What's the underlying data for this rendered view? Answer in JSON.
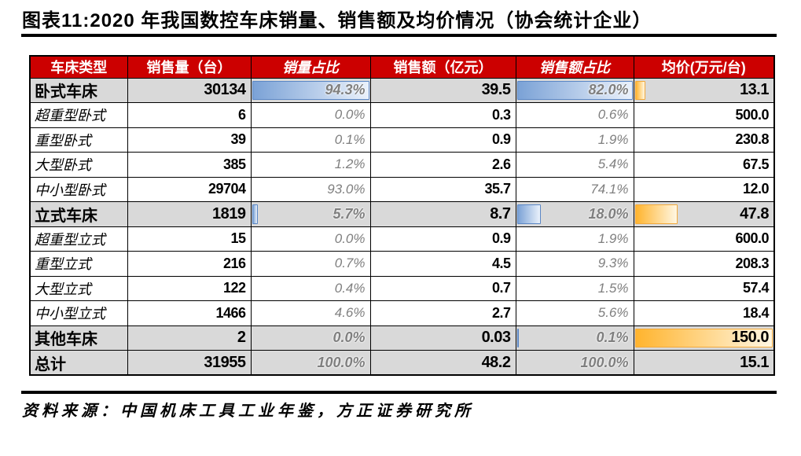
{
  "title": "图表11:2020 年我国数控车床销量、销售额及均价情况（协会统计企业）",
  "source": "资料来源：中国机床工具工业年鉴，方正证券研究所",
  "colors": {
    "header_bg": "#CC0000",
    "header_text": "#FFFFFF",
    "category_bg": "#D9D9D9",
    "grid": "#000000",
    "pct_text": "#7F7F7F",
    "bar_blue_start": "#7BA2D6",
    "bar_blue_end": "#EAF1FB",
    "bar_blue_border": "#5B87C5",
    "bar_orange_start": "#FFB42E",
    "bar_orange_end": "#FFF7E3",
    "bar_orange_border": "#F2A93B"
  },
  "table": {
    "columns": [
      {
        "id": "type",
        "label": "车床类型",
        "italic": false
      },
      {
        "id": "volume",
        "label": "销售量（台）",
        "italic": false
      },
      {
        "id": "volume-share",
        "label": "销量占比",
        "italic": true
      },
      {
        "id": "revenue",
        "label": "销售额（亿元）",
        "italic": false
      },
      {
        "id": "revenue-share",
        "label": "销售额占比",
        "italic": true
      },
      {
        "id": "avg-price",
        "label": "均价(万元/台)",
        "italic": false
      }
    ],
    "rows": [
      {
        "label": "卧式车床",
        "type": "category",
        "volume": "30134",
        "volume_share": "94.3%",
        "revenue": "39.5",
        "revenue_share": "82.0%",
        "avg_price": "13.1",
        "bars": {
          "volume": 100,
          "revenue": 100,
          "price": 8.7
        }
      },
      {
        "label": "超重型卧式",
        "type": "sub",
        "volume": "6",
        "volume_share": "0.0%",
        "revenue": "0.3",
        "revenue_share": "0.6%",
        "avg_price": "500.0",
        "bars": null
      },
      {
        "label": "重型卧式",
        "type": "sub",
        "volume": "39",
        "volume_share": "0.1%",
        "revenue": "0.9",
        "revenue_share": "1.9%",
        "avg_price": "230.8",
        "bars": null
      },
      {
        "label": "大型卧式",
        "type": "sub",
        "volume": "385",
        "volume_share": "1.2%",
        "revenue": "2.6",
        "revenue_share": "5.4%",
        "avg_price": "67.5",
        "bars": null
      },
      {
        "label": "中小型卧式",
        "type": "sub",
        "volume": "29704",
        "volume_share": "93.0%",
        "revenue": "35.7",
        "revenue_share": "74.1%",
        "avg_price": "12.0",
        "bars": null
      },
      {
        "label": "立式车床",
        "type": "category",
        "volume": "1819",
        "volume_share": "5.7%",
        "revenue": "8.7",
        "revenue_share": "18.0%",
        "avg_price": "47.8",
        "bars": {
          "volume": 6.0,
          "revenue": 22.0,
          "price": 31.9
        }
      },
      {
        "label": "超重型立式",
        "type": "sub",
        "volume": "15",
        "volume_share": "0.0%",
        "revenue": "0.9",
        "revenue_share": "1.9%",
        "avg_price": "600.0",
        "bars": null
      },
      {
        "label": "重型立式",
        "type": "sub",
        "volume": "216",
        "volume_share": "0.7%",
        "revenue": "4.5",
        "revenue_share": "9.3%",
        "avg_price": "208.3",
        "bars": null
      },
      {
        "label": "大型立式",
        "type": "sub",
        "volume": "122",
        "volume_share": "0.4%",
        "revenue": "0.7",
        "revenue_share": "1.5%",
        "avg_price": "57.4",
        "bars": null
      },
      {
        "label": "中小型立式",
        "type": "sub",
        "volume": "1466",
        "volume_share": "4.6%",
        "revenue": "2.7",
        "revenue_share": "5.6%",
        "avg_price": "18.4",
        "bars": null
      },
      {
        "label": "其他车床",
        "type": "category",
        "volume": "2",
        "volume_share": "0.0%",
        "revenue": "0.03",
        "revenue_share": "0.1%",
        "avg_price": "150.0",
        "bars": {
          "volume": 0,
          "revenue": 0.1,
          "price": 100
        }
      },
      {
        "label": "总计",
        "type": "total",
        "volume": "31955",
        "volume_share": "100.0%",
        "revenue": "48.2",
        "revenue_share": "100.0%",
        "avg_price": "15.1",
        "bars": null
      }
    ]
  }
}
